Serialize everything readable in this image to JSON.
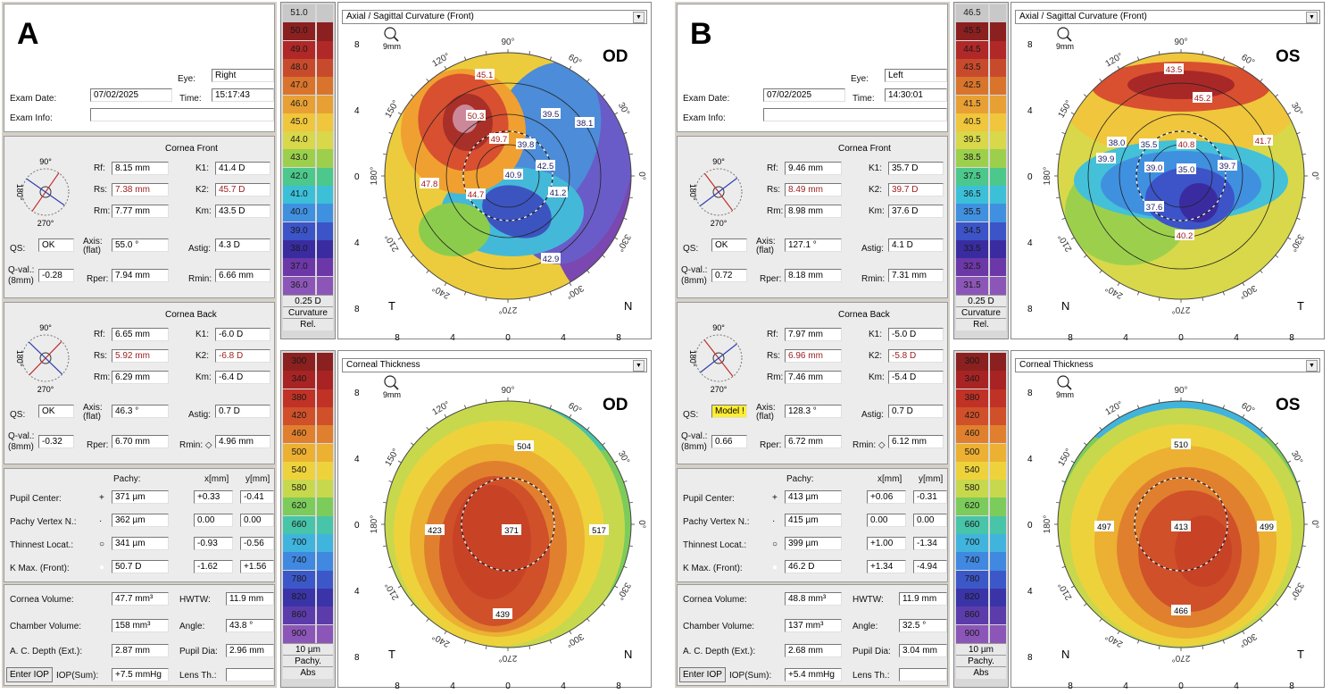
{
  "panels": [
    {
      "letter": "A",
      "exam": {
        "eye_label": "Eye:",
        "eye": "Right",
        "date_label": "Exam Date:",
        "date": "07/02/2025",
        "time_label": "Time:",
        "time": "15:17:43",
        "info_label": "Exam Info:",
        "info": ""
      },
      "front": {
        "title": "Cornea Front",
        "rf": "8.15 mm",
        "k1": "41.4 D",
        "rs": "7.38 mm",
        "k2": "45.7 D",
        "rm": "7.77 mm",
        "km": "43.5 D",
        "qs": "OK",
        "axis": "55.0 °",
        "astig": "4.3 D",
        "qval": "-0.28",
        "rper": "7.94 mm",
        "rmin": "6.66 mm"
      },
      "back": {
        "title": "Cornea Back",
        "rf": "6.65 mm",
        "k1": "-6.0 D",
        "rs": "5.92 mm",
        "k2": "-6.8 D",
        "rm": "6.29 mm",
        "km": "-6.4 D",
        "qs": "OK",
        "axis": "46.3 °",
        "astig": "0.7 D",
        "qval": "-0.32",
        "rper": "6.70 mm",
        "rmin": "4.96 mm"
      },
      "pachy": {
        "pc": "371 µm",
        "pc_x": "+0.33",
        "pc_y": "-0.41",
        "pv": "362 µm",
        "pv_x": "0.00",
        "pv_y": "0.00",
        "tl": "341 µm",
        "tl_x": "-0.93",
        "tl_y": "-0.56",
        "km": "50.7 D",
        "km_x": "-1.62",
        "km_y": "+1.56"
      },
      "volume": {
        "cv": "47.7 mm³",
        "hwtw": "11.9 mm",
        "chv": "158 mm³",
        "angle": "43.8 °",
        "acd": "2.87 mm",
        "pupil": "2.96 mm",
        "iop": "+7.5 mmHg",
        "lens": ""
      },
      "curv_scale": [
        "51.0",
        "50.0",
        "49.0",
        "48.0",
        "47.0",
        "46.0",
        "45.0",
        "44.0",
        "43.0",
        "42.0",
        "41.0",
        "40.0",
        "39.0",
        "38.0",
        "37.0",
        "36.0"
      ],
      "pachy_scale": [
        "300",
        "340",
        "380",
        "420",
        "460",
        "500",
        "540",
        "580",
        "620",
        "660",
        "700",
        "740",
        "780",
        "820",
        "860",
        "900"
      ],
      "curv_map": {
        "title": "Axial / Sagittal Curvature (Front)",
        "eye": "OD",
        "left_corner": "T",
        "right_corner": "N"
      },
      "pachy_map": {
        "title": "Corneal Thickness",
        "eye": "OD",
        "left_corner": "T",
        "right_corner": "N"
      },
      "curv_values": [
        "45.1",
        "50.3",
        "39.5",
        "38.1",
        "49.7",
        "39.8",
        "42.5",
        "40.9",
        "47.8",
        "44.7",
        "41.2",
        "42.9"
      ],
      "pachy_values": [
        "504",
        "423",
        "371",
        "517",
        "439"
      ]
    },
    {
      "letter": "B",
      "exam": {
        "eye_label": "Eye:",
        "eye": "Left",
        "date_label": "Exam Date:",
        "date": "07/02/2025",
        "time_label": "Time:",
        "time": "14:30:01",
        "info_label": "Exam Info:",
        "info": ""
      },
      "front": {
        "title": "Cornea Front",
        "rf": "9.46 mm",
        "k1": "35.7 D",
        "rs": "8.49 mm",
        "k2": "39.7 D",
        "rm": "8.98 mm",
        "km": "37.6 D",
        "qs": "OK",
        "axis": "127.1 °",
        "astig": "4.1 D",
        "qval": "0.72",
        "rper": "8.18 mm",
        "rmin": "7.31 mm"
      },
      "back": {
        "title": "Cornea Back",
        "rf": "7.97 mm",
        "k1": "-5.0 D",
        "rs": "6.96 mm",
        "k2": "-5.8 D",
        "rm": "7.46 mm",
        "km": "-5.4 D",
        "qs": "Model !",
        "axis": "128.3 °",
        "astig": "0.7 D",
        "qval": "0.66",
        "rper": "6.72 mm",
        "rmin": "6.12 mm"
      },
      "pachy": {
        "pc": "413 µm",
        "pc_x": "+0.06",
        "pc_y": "-0.31",
        "pv": "415 µm",
        "pv_x": "0.00",
        "pv_y": "0.00",
        "tl": "399 µm",
        "tl_x": "+1.00",
        "tl_y": "-1.34",
        "km": "46.2 D",
        "km_x": "+1.34",
        "km_y": "-4.94"
      },
      "volume": {
        "cv": "48.8 mm³",
        "hwtw": "11.9 mm",
        "chv": "137 mm³",
        "angle": "32.5 °",
        "acd": "2.68 mm",
        "pupil": "3.04 mm",
        "iop": "+5.4 mmHg",
        "lens": ""
      },
      "curv_scale": [
        "46.5",
        "45.5",
        "44.5",
        "43.5",
        "42.5",
        "41.5",
        "40.5",
        "39.5",
        "38.5",
        "37.5",
        "36.5",
        "35.5",
        "34.5",
        "33.5",
        "32.5",
        "31.5"
      ],
      "pachy_scale": [
        "300",
        "340",
        "380",
        "420",
        "460",
        "500",
        "540",
        "580",
        "620",
        "660",
        "700",
        "740",
        "780",
        "820",
        "860",
        "900"
      ],
      "curv_map": {
        "title": "Axial / Sagittal Curvature (Front)",
        "eye": "OS",
        "left_corner": "N",
        "right_corner": "T"
      },
      "pachy_map": {
        "title": "Corneal Thickness",
        "eye": "OS",
        "left_corner": "N",
        "right_corner": "T"
      },
      "curv_values": [
        "43.5",
        "45.2",
        "38.0",
        "35.5",
        "40.8",
        "41.7",
        "39.9",
        "39.0",
        "35.0",
        "39.7",
        "37.6",
        "40.2"
      ],
      "pachy_values": [
        "510",
        "497",
        "413",
        "499",
        "466"
      ]
    }
  ],
  "labels": {
    "rf": "Rf:",
    "rs": "Rs:",
    "rm": "Rm:",
    "k1": "K1:",
    "k2": "K2:",
    "km": "Km:",
    "qs": "QS:",
    "axis": "Axis:",
    "flat": "(flat)",
    "astig": "Astig:",
    "qval": "Q-val.:",
    "mm8": "(8mm)",
    "rper": "Rper:",
    "rmin": "Rmin:",
    "rmin_back": "Rmin: ◇",
    "pachy_h": "Pachy:",
    "x_h": "x[mm]",
    "y_h": "y[mm]",
    "pupil_center": "Pupil Center:",
    "pachy_vertex": "Pachy Vertex N.:",
    "thinnest": "Thinnest Locat.:",
    "kmax": "K Max. (Front):",
    "cornea_vol": "Cornea Volume:",
    "hwtw": "HWTW:",
    "chamber_vol": "Chamber Volume:",
    "angle": "Angle:",
    "acd": "A. C. Depth (Ext.):",
    "pupil_dia": "Pupil Dia:",
    "enter_iop": "Enter IOP",
    "iop_sum": "IOP(Sum):",
    "lens": "Lens Th.:",
    "deg90": "90°",
    "deg180": "180°",
    "deg270": "270°",
    "curv_step": "0.25 D",
    "curv_name": "Curvature",
    "curv_mode": "Rel.",
    "pachy_step": "10 µm",
    "pachy_name": "Pachy.",
    "pachy_mode": "Abs",
    "zoom": "9mm",
    "ring_angles": [
      "90°",
      "60°",
      "30°",
      "0°",
      "330°",
      "300°",
      "270°",
      "240°",
      "210°",
      "180°",
      "150°",
      "120°"
    ],
    "y_ticks": [
      "8",
      "4",
      "0",
      "4",
      "8"
    ],
    "x_ticks": [
      "8",
      "4",
      "0",
      "4",
      "8"
    ]
  }
}
